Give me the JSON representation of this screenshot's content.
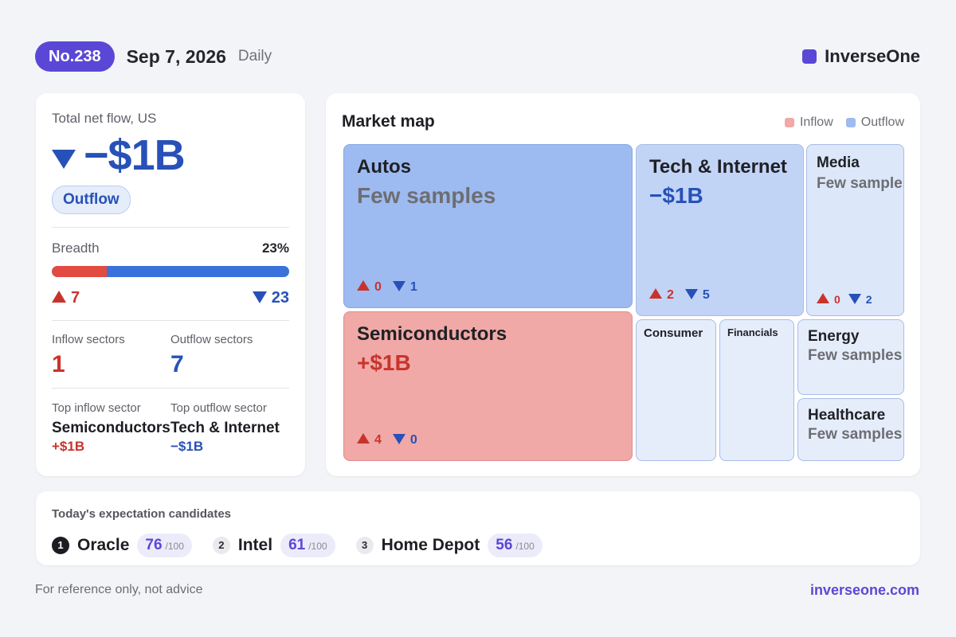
{
  "header": {
    "issue": "No.238",
    "date": "Sep 7, 2026",
    "frequency": "Daily",
    "brand": "InverseOne",
    "brand_color": "#5b47d6"
  },
  "summary": {
    "label": "Total net flow, US",
    "net_value": "−$1B",
    "direction_icon": "down-triangle-icon",
    "badge": "Outflow",
    "breadth_label": "Breadth",
    "breadth_pct": "23%",
    "breadth_fraction": 0.23,
    "up_count": "7",
    "down_count": "23",
    "inflow_sectors_label": "Inflow sectors",
    "inflow_sectors": "1",
    "outflow_sectors_label": "Outflow sectors",
    "outflow_sectors": "7",
    "top_inflow_label": "Top inflow sector",
    "top_inflow_name": "Semiconductors",
    "top_inflow_value": "+$1B",
    "top_outflow_label": "Top outflow sector",
    "top_outflow_name": "Tech & Internet",
    "top_outflow_value": "−$1B"
  },
  "map": {
    "title": "Market map",
    "legend_inflow": "Inflow",
    "legend_outflow": "Outflow",
    "inflow_color": "#f0a9a6",
    "outflow_color": "#9dbbf1",
    "tiles": [
      {
        "name": "Autos",
        "value": "Few samples",
        "up": "0",
        "down": "1"
      },
      {
        "name": "Tech & Internet",
        "value": "−$1B",
        "up": "2",
        "down": "5"
      },
      {
        "name": "Media",
        "value": "Few samples",
        "up": "0",
        "down": "2"
      },
      {
        "name": "Semiconductors",
        "value": "+$1B",
        "up": "4",
        "down": "0"
      },
      {
        "name": "Consumer"
      },
      {
        "name": "Financials"
      },
      {
        "name": "Energy",
        "value": "Few samples"
      },
      {
        "name": "Healthcare",
        "value": "Few samples"
      }
    ]
  },
  "candidates": {
    "title": "Today's expectation candidates",
    "items": [
      {
        "rank": "1",
        "name": "Oracle",
        "score": "76",
        "max": "/100"
      },
      {
        "rank": "2",
        "name": "Intel",
        "score": "61",
        "max": "/100"
      },
      {
        "rank": "3",
        "name": "Home Depot",
        "score": "56",
        "max": "/100"
      }
    ]
  },
  "footer": {
    "disclaimer": "For reference only, not advice",
    "site": "inverseone.com"
  }
}
